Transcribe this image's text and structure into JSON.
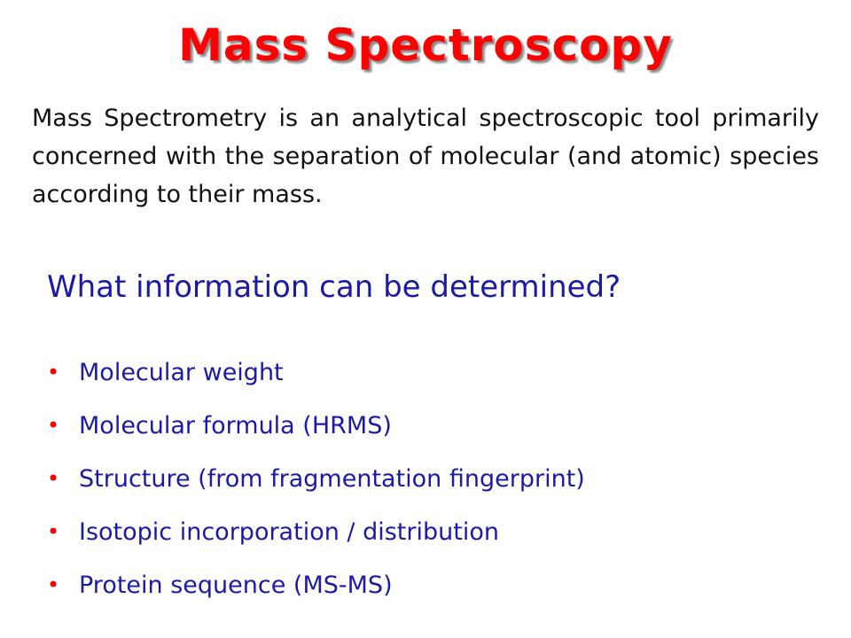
{
  "slide": {
    "title": "Mass Spectroscopy",
    "intro": "Mass Spectrometry is an analytical spectroscopic tool primarily concerned with the separation of molecular (and atomic) species according to their mass.",
    "question": "What information can be determined?",
    "bullets": [
      {
        "text": "Molecular weight"
      },
      {
        "text": "Molecular formula (HRMS)"
      },
      {
        "text": "Structure (from fragmentation fingerprint)"
      },
      {
        "text": "Isotopic incorporation / distribution"
      },
      {
        "text": "Protein sequence (MS-MS)"
      }
    ]
  },
  "colors": {
    "title": "#ff0000",
    "title_shadow": "#8a8a8a",
    "body_text": "#111111",
    "accent_text": "#1a1aa6",
    "bullet_dot": "#ff0000",
    "background": "#ffffff"
  },
  "icons": {
    "bullet": "bullet-dot-icon"
  }
}
